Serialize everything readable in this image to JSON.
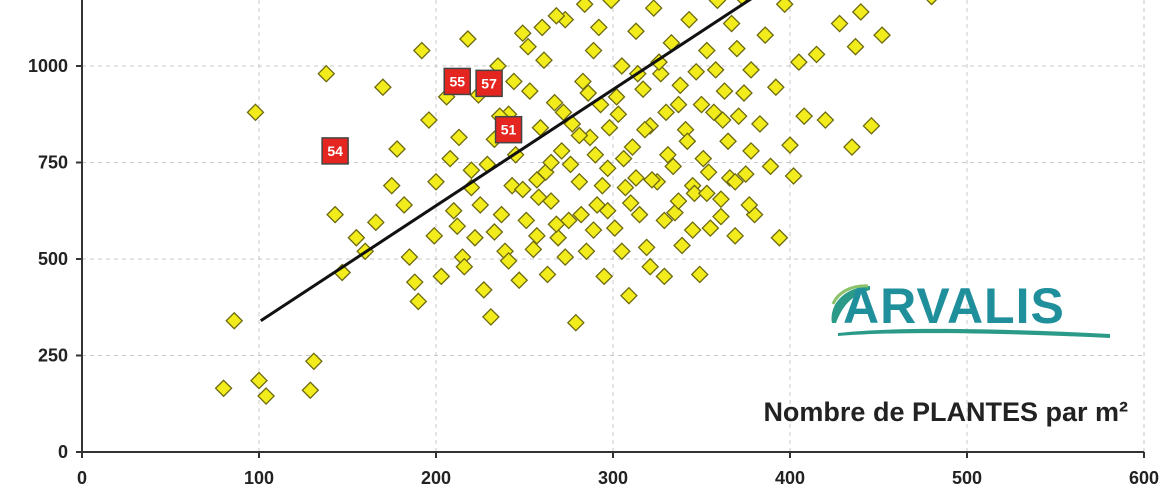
{
  "chart_data": {
    "type": "scatter",
    "title": "",
    "xlabel": "Nombre de PLANTES par m²",
    "ylabel": "",
    "xlim": [
      0,
      600
    ],
    "ylim": [
      0,
      1200
    ],
    "xticks": [
      0,
      100,
      200,
      300,
      400,
      500,
      600
    ],
    "yticks": [
      0,
      250,
      500,
      750,
      1000
    ],
    "grid": true,
    "series": [
      {
        "marker": "diamond",
        "color": "#f2ec1d",
        "points": [
          [
            80,
            165
          ],
          [
            86,
            340
          ],
          [
            98,
            880
          ],
          [
            100,
            185
          ],
          [
            104,
            145
          ],
          [
            129,
            160
          ],
          [
            131,
            235
          ],
          [
            138,
            980
          ],
          [
            143,
            615
          ],
          [
            147,
            465
          ],
          [
            155,
            555
          ],
          [
            160,
            520
          ],
          [
            166,
            595
          ],
          [
            170,
            945
          ],
          [
            175,
            690
          ],
          [
            178,
            785
          ],
          [
            182,
            640
          ],
          [
            185,
            505
          ],
          [
            188,
            440
          ],
          [
            190,
            390
          ],
          [
            192,
            1040
          ],
          [
            196,
            860
          ],
          [
            199,
            560
          ],
          [
            200,
            700
          ],
          [
            203,
            455
          ],
          [
            206,
            920
          ],
          [
            208,
            760
          ],
          [
            210,
            625
          ],
          [
            213,
            815
          ],
          [
            215,
            505
          ],
          [
            218,
            1070
          ],
          [
            220,
            685
          ],
          [
            222,
            555
          ],
          [
            224,
            925
          ],
          [
            227,
            420
          ],
          [
            229,
            745
          ],
          [
            231,
            350
          ],
          [
            233,
            810
          ],
          [
            235,
            1000
          ],
          [
            237,
            615
          ],
          [
            239,
            520
          ],
          [
            241,
            875
          ],
          [
            243,
            690
          ],
          [
            245,
            770
          ],
          [
            247,
            445
          ],
          [
            249,
            1085
          ],
          [
            251,
            600
          ],
          [
            253,
            935
          ],
          [
            255,
            525
          ],
          [
            257,
            705
          ],
          [
            259,
            840
          ],
          [
            261,
            1015
          ],
          [
            263,
            460
          ],
          [
            265,
            650
          ],
          [
            267,
            905
          ],
          [
            269,
            555
          ],
          [
            271,
            780
          ],
          [
            273,
            1120
          ],
          [
            275,
            600
          ],
          [
            277,
            850
          ],
          [
            279,
            335
          ],
          [
            281,
            700
          ],
          [
            283,
            960
          ],
          [
            285,
            520
          ],
          [
            287,
            815
          ],
          [
            289,
            1040
          ],
          [
            291,
            640
          ],
          [
            293,
            900
          ],
          [
            295,
            455
          ],
          [
            297,
            735
          ],
          [
            299,
            1170
          ],
          [
            301,
            580
          ],
          [
            303,
            875
          ],
          [
            305,
            1000
          ],
          [
            307,
            685
          ],
          [
            309,
            405
          ],
          [
            311,
            790
          ],
          [
            313,
            1090
          ],
          [
            315,
            615
          ],
          [
            317,
            940
          ],
          [
            319,
            530
          ],
          [
            321,
            845
          ],
          [
            323,
            1150
          ],
          [
            325,
            700
          ],
          [
            327,
            980
          ],
          [
            329,
            455
          ],
          [
            331,
            770
          ],
          [
            333,
            1060
          ],
          [
            335,
            620
          ],
          [
            337,
            900
          ],
          [
            339,
            535
          ],
          [
            341,
            835
          ],
          [
            343,
            1120
          ],
          [
            345,
            690
          ],
          [
            347,
            985
          ],
          [
            349,
            460
          ],
          [
            351,
            760
          ],
          [
            353,
            1040
          ],
          [
            355,
            580
          ],
          [
            357,
            880
          ],
          [
            359,
            1170
          ],
          [
            361,
            655
          ],
          [
            363,
            935
          ],
          [
            365,
            805
          ],
          [
            367,
            1110
          ],
          [
            369,
            560
          ],
          [
            371,
            870
          ],
          [
            373,
            1180
          ],
          [
            375,
            720
          ],
          [
            378,
            990
          ],
          [
            380,
            615
          ],
          [
            383,
            850
          ],
          [
            386,
            1080
          ],
          [
            389,
            740
          ],
          [
            392,
            945
          ],
          [
            394,
            555
          ],
          [
            397,
            1160
          ],
          [
            400,
            795
          ],
          [
            402,
            715
          ],
          [
            405,
            1010
          ],
          [
            408,
            870
          ],
          [
            415,
            1030
          ],
          [
            420,
            860
          ],
          [
            428,
            1110
          ],
          [
            435,
            790
          ],
          [
            437,
            1050
          ],
          [
            440,
            1140
          ],
          [
            446,
            845
          ],
          [
            452,
            1080
          ],
          [
            480,
            1180
          ],
          [
            258,
            660
          ],
          [
            262,
            725
          ],
          [
            268,
            590
          ],
          [
            272,
            880
          ],
          [
            276,
            745
          ],
          [
            282,
            615
          ],
          [
            286,
            930
          ],
          [
            290,
            770
          ],
          [
            294,
            690
          ],
          [
            298,
            840
          ],
          [
            302,
            920
          ],
          [
            306,
            760
          ],
          [
            310,
            645
          ],
          [
            314,
            980
          ],
          [
            318,
            835
          ],
          [
            322,
            705
          ],
          [
            326,
            1010
          ],
          [
            330,
            880
          ],
          [
            334,
            740
          ],
          [
            338,
            950
          ],
          [
            342,
            805
          ],
          [
            346,
            670
          ],
          [
            350,
            900
          ],
          [
            354,
            725
          ],
          [
            358,
            990
          ],
          [
            362,
            860
          ],
          [
            366,
            710
          ],
          [
            370,
            1045
          ],
          [
            374,
            930
          ],
          [
            378,
            780
          ],
          [
            225,
            640
          ],
          [
            233,
            570
          ],
          [
            241,
            495
          ],
          [
            249,
            680
          ],
          [
            257,
            560
          ],
          [
            265,
            750
          ],
          [
            273,
            505
          ],
          [
            281,
            820
          ],
          [
            289,
            575
          ],
          [
            297,
            625
          ],
          [
            305,
            520
          ],
          [
            313,
            710
          ],
          [
            321,
            480
          ],
          [
            329,
            600
          ],
          [
            337,
            650
          ],
          [
            345,
            575
          ],
          [
            353,
            670
          ],
          [
            361,
            610
          ],
          [
            369,
            700
          ],
          [
            377,
            640
          ],
          [
            212,
            585
          ],
          [
            216,
            480
          ],
          [
            220,
            730
          ],
          [
            236,
            870
          ],
          [
            244,
            960
          ],
          [
            252,
            1050
          ],
          [
            260,
            1100
          ],
          [
            268,
            1130
          ],
          [
            284,
            1160
          ],
          [
            292,
            1100
          ]
        ]
      }
    ],
    "highlighted_points": [
      {
        "label": "54",
        "x": 143,
        "y": 780
      },
      {
        "label": "55",
        "x": 212,
        "y": 960
      },
      {
        "label": "57",
        "x": 230,
        "y": 955
      },
      {
        "label": "51",
        "x": 241,
        "y": 835
      }
    ],
    "trendline": {
      "x": [
        101,
        385
      ],
      "y": [
        340,
        1195
      ]
    }
  },
  "logo": {
    "text": "ARVALIS",
    "color": "#1f8f9c",
    "accent_color": "#2b9a88"
  },
  "colors": {
    "point_fill": "#f2ec1d",
    "point_stroke": "#6d6a10",
    "highlight_fill": "#e52620",
    "trendline": "#111111",
    "grid": "#c8c8c8",
    "axis": "#333333"
  }
}
